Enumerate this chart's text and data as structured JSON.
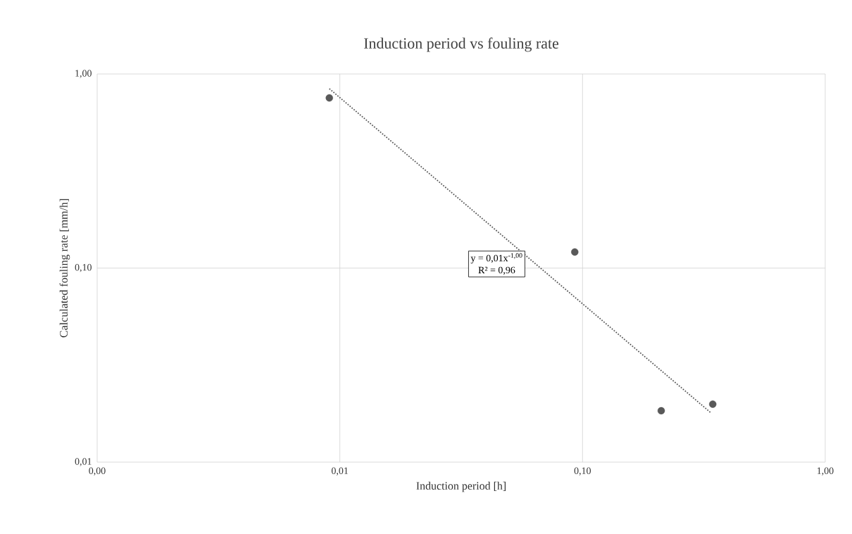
{
  "chart_data": {
    "type": "scatter",
    "title": "Induction period vs fouling rate",
    "xlabel": "Induction period [h]",
    "ylabel": "Calculated fouling rate [mm/h]",
    "series": [
      {
        "color": "#595959",
        "marker": "circle",
        "x": [
          0.00905,
          0.0929,
          0.211,
          0.344
        ],
        "values": [
          0.753,
          0.121,
          0.0184,
          0.0199
        ]
      },
      {
        "type": "line",
        "color": "#595959",
        "marker": "none",
        "line_style": "dotted",
        "x": [
          0.00905,
          0.339
        ],
        "values": [
          0.84,
          0.0179
        ]
      }
    ],
    "annotations": [
      "y = 0,01x$^{-1,00}$",
      "R² = 0,96"
    ],
    "log": "xy",
    "grid": true,
    "xlim": [
      0.001,
      1
    ],
    "ylim": [
      0.01,
      1
    ],
    "xticks": [
      {
        "value": 0.001,
        "label": "0,00"
      },
      {
        "value": 0.01,
        "label": "0,01"
      },
      {
        "value": 0.1,
        "label": "0,10"
      },
      {
        "value": 1,
        "label": "1,00"
      }
    ],
    "yticks": [
      {
        "value": 0.01,
        "label": "0,01"
      },
      {
        "value": 0.1,
        "label": "0,10"
      },
      {
        "value": 1,
        "label": "1,00"
      }
    ]
  }
}
